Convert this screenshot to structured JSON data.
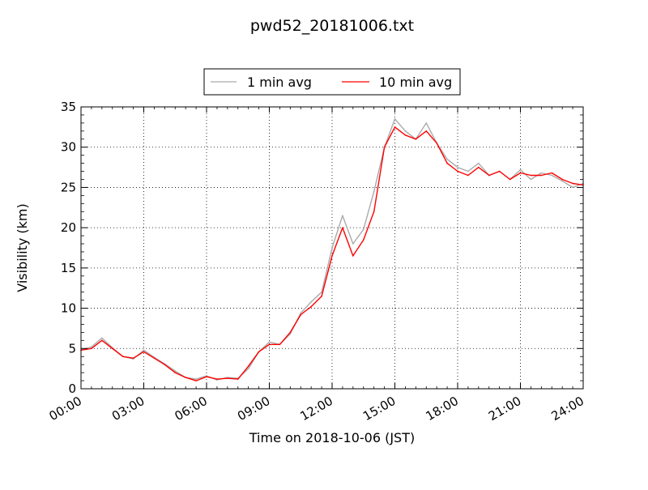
{
  "chart_data": {
    "type": "line",
    "title": "pwd52_20181006.txt",
    "xlabel": "Time on 2018-10-06 (JST)",
    "ylabel": "Visibility (km)",
    "xlim": [
      "00:00",
      "24:00"
    ],
    "ylim": [
      0,
      35
    ],
    "x_ticks": [
      "00:00",
      "03:00",
      "06:00",
      "09:00",
      "12:00",
      "15:00",
      "18:00",
      "21:00",
      "24:00"
    ],
    "y_ticks": [
      "0",
      "5",
      "10",
      "15",
      "20",
      "25",
      "30",
      "35"
    ],
    "grid": true,
    "legend_position": "top-center",
    "colors": {
      "one_min": "#aaaaaa",
      "ten_min": "#ff0000"
    },
    "series": [
      {
        "name": "1 min avg",
        "x": [
          "00:00",
          "00:30",
          "01:00",
          "01:30",
          "02:00",
          "02:30",
          "03:00",
          "03:30",
          "04:00",
          "04:30",
          "05:00",
          "05:30",
          "06:00",
          "06:30",
          "07:00",
          "07:30",
          "08:00",
          "08:30",
          "09:00",
          "09:30",
          "10:00",
          "10:30",
          "11:00",
          "11:30",
          "12:00",
          "12:30",
          "13:00",
          "13:30",
          "14:00",
          "14:30",
          "15:00",
          "15:30",
          "16:00",
          "16:30",
          "17:00",
          "17:30",
          "18:00",
          "18:30",
          "19:00",
          "19:30",
          "20:00",
          "20:30",
          "21:00",
          "21:30",
          "22:00",
          "22:30",
          "23:00",
          "23:30",
          "24:00"
        ],
        "values": [
          4.8,
          5.2,
          6.3,
          5.1,
          4.0,
          3.7,
          4.8,
          3.9,
          3.1,
          2.2,
          1.4,
          1.2,
          1.6,
          1.1,
          1.4,
          1.3,
          2.5,
          4.6,
          5.8,
          5.5,
          6.8,
          9.4,
          10.8,
          12.0,
          17.5,
          21.5,
          18.0,
          19.8,
          24.5,
          30.0,
          33.5,
          32.0,
          31.0,
          33.0,
          30.5,
          28.5,
          27.5,
          27.0,
          28.0,
          26.5,
          27.0,
          26.0,
          27.2,
          26.0,
          26.8,
          26.5,
          25.8,
          25.0,
          25.5
        ]
      },
      {
        "name": "10 min avg",
        "x": [
          "00:00",
          "00:30",
          "01:00",
          "01:30",
          "02:00",
          "02:30",
          "03:00",
          "03:30",
          "04:00",
          "04:30",
          "05:00",
          "05:30",
          "06:00",
          "06:30",
          "07:00",
          "07:30",
          "08:00",
          "08:30",
          "09:00",
          "09:30",
          "10:00",
          "10:30",
          "11:00",
          "11:30",
          "12:00",
          "12:30",
          "13:00",
          "13:30",
          "14:00",
          "14:30",
          "15:00",
          "15:30",
          "16:00",
          "16:30",
          "17:00",
          "17:30",
          "18:00",
          "18:30",
          "19:00",
          "19:30",
          "20:00",
          "20:30",
          "21:00",
          "21:30",
          "22:00",
          "22:30",
          "23:00",
          "23:30",
          "24:00"
        ],
        "values": [
          4.8,
          5.0,
          6.0,
          5.0,
          4.0,
          3.8,
          4.6,
          3.8,
          3.0,
          2.0,
          1.4,
          1.0,
          1.5,
          1.2,
          1.3,
          1.2,
          2.8,
          4.6,
          5.5,
          5.5,
          7.0,
          9.2,
          10.2,
          11.5,
          16.5,
          20.0,
          16.5,
          18.5,
          22.0,
          30.0,
          32.5,
          31.5,
          31.0,
          32.0,
          30.5,
          28.0,
          27.0,
          26.5,
          27.5,
          26.5,
          27.0,
          26.0,
          26.8,
          26.5,
          26.5,
          26.8,
          26.0,
          25.5,
          25.3
        ]
      }
    ]
  }
}
